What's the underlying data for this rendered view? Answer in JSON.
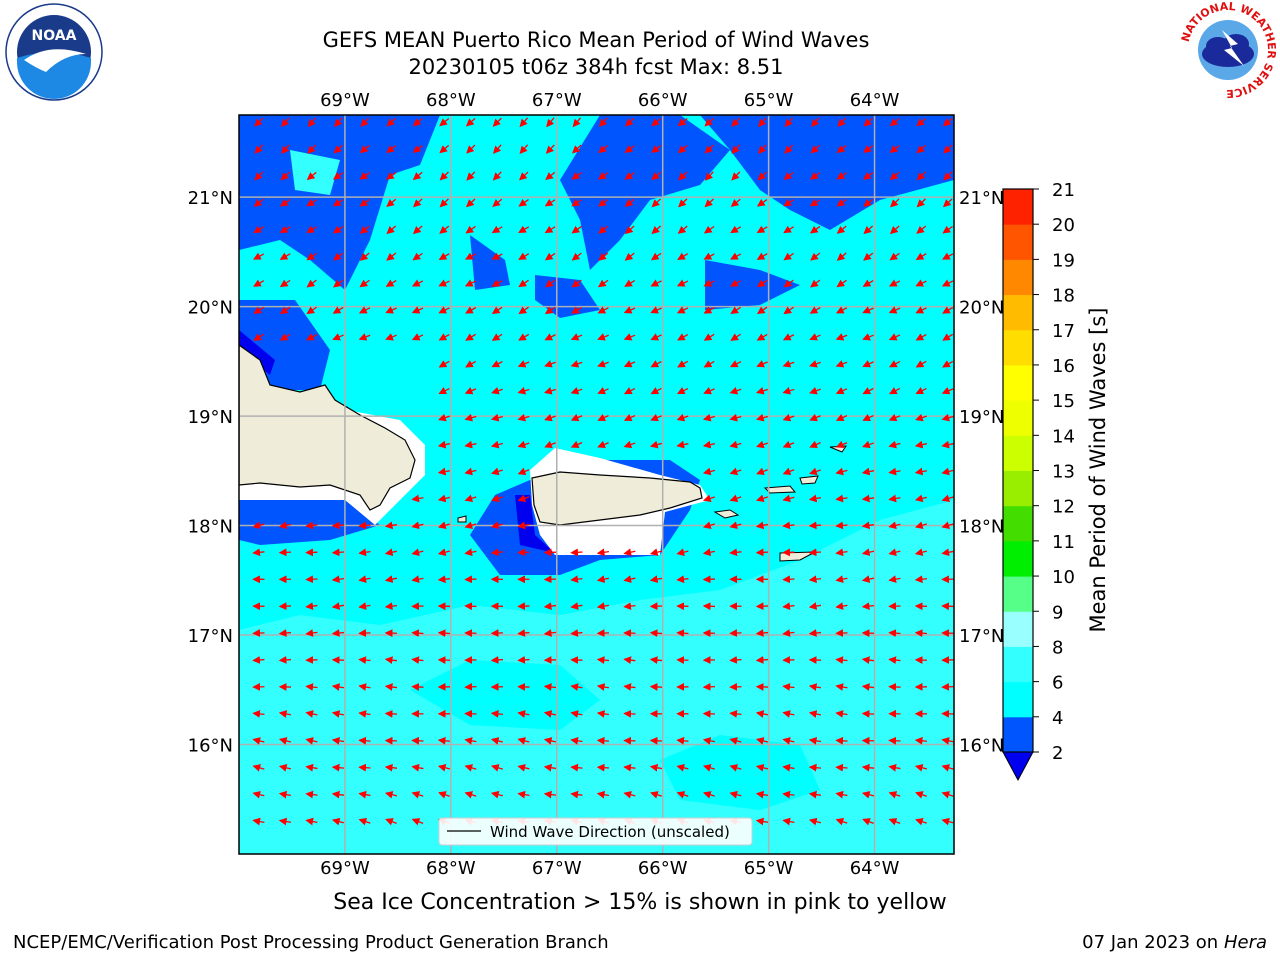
{
  "header": {
    "title_line1": "GEFS MEAN Puerto Rico Mean Period of Wind Waves",
    "title_line2": "20230105 t06z 384h fcst   Max: 8.51"
  },
  "logos": {
    "left": "noaa-logo",
    "right": "nws-logo",
    "right_ring_text": "NATIONAL WEATHER SERVICE"
  },
  "map": {
    "lon_ticks": [
      "69°W",
      "68°W",
      "67°W",
      "66°W",
      "65°W",
      "64°W"
    ],
    "lat_ticks": [
      "21°N",
      "20°N",
      "19°N",
      "18°N",
      "17°N",
      "16°N"
    ],
    "lon_values": [
      -69,
      -68,
      -67,
      -66,
      -65,
      -64
    ],
    "lat_values": [
      21,
      20,
      19,
      18,
      17,
      16
    ],
    "extent": {
      "lon_min": -70,
      "lon_max": -63.25,
      "lat_min": 15,
      "lat_max": 21.75
    },
    "legend_label": "Wind Wave Direction (unscaled)",
    "arrow_color": "#ff0000",
    "land_color": "#efedda",
    "grid_color": "#b0b0b0"
  },
  "colorbar": {
    "label": "Mean Period of Wind Waves [s]",
    "ticks": [
      "2",
      "4",
      "6",
      "8",
      "9",
      "10",
      "11",
      "12",
      "13",
      "14",
      "15",
      "16",
      "17",
      "18",
      "19",
      "20",
      "21"
    ],
    "colors": [
      "#0055ff",
      "#00ffff",
      "#33ffff",
      "#99ffff",
      "#55ff88",
      "#00ee00",
      "#44dd00",
      "#99ee00",
      "#ccff00",
      "#eeff00",
      "#ffff00",
      "#ffdd00",
      "#ffbb00",
      "#ff8800",
      "#ff5500",
      "#ff2200"
    ],
    "under_color": "#0000ee"
  },
  "caption": "Sea Ice Concentration > 15% is shown in pink to yellow",
  "footer": {
    "left": "NCEP/EMC/Verification Post Processing Product Generation Branch",
    "right_date": "07 Jan 2023 on ",
    "right_machine": "Hera"
  }
}
